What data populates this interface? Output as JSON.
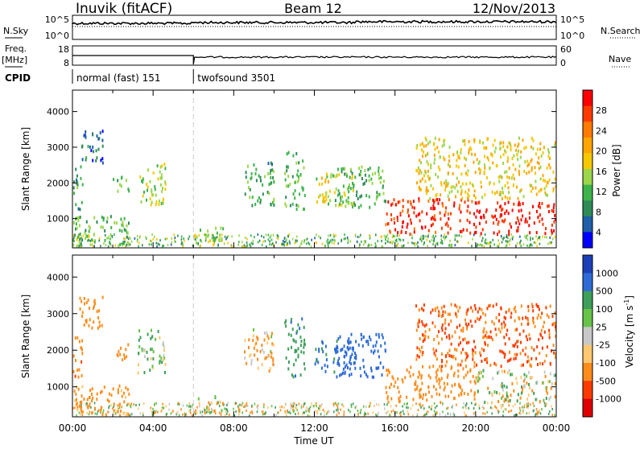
{
  "header": {
    "station": "Inuvik (fitACF)",
    "beam": "Beam 12",
    "date": "12/Nov/2013"
  },
  "side_labels": {
    "nsky": "N.Sky",
    "freq_top": "Freq.",
    "freq_unit": "[MHz]",
    "cpid": "CPID",
    "nsearch": "N.Search",
    "nave": "Nave"
  },
  "strip_ticks": {
    "noise_top": "10^5",
    "noise_bottom": "10^0",
    "freq_top": "18",
    "freq_bottom": "8",
    "nave_top": "60",
    "nave_bottom": "0"
  },
  "cpid_segments": [
    {
      "label": "normal (fast) 151",
      "start_hour": 0,
      "end_hour": 6.0
    },
    {
      "label": "twofsound 3501",
      "start_hour": 6.0,
      "end_hour": 24
    }
  ],
  "chart_data": [
    {
      "type": "heatmap",
      "name": "power-panel",
      "x": {
        "label": "Time UT",
        "range_hours": [
          0,
          24
        ],
        "ticks": [
          "00:00",
          "04:00",
          "08:00",
          "12:00",
          "16:00",
          "20:00",
          "00:00"
        ]
      },
      "y": {
        "label": "Slant Range [km]",
        "range": [
          180,
          4600
        ],
        "ticks": [
          "1000",
          "2000",
          "3000",
          "4000"
        ]
      },
      "colorbar": {
        "label": "Power [dB]",
        "ticks": [
          "28",
          "24",
          "20",
          "16",
          "12",
          "8",
          "4"
        ],
        "colors": [
          "#ff0000",
          "#ff3a00",
          "#ff7a00",
          "#ffa500",
          "#f5c800",
          "#9bd64b",
          "#3cb44b",
          "#2e8b57",
          "#1e5fa8",
          "#0000ff"
        ]
      },
      "regions": [
        {
          "t0": 0.0,
          "t1": 0.5,
          "r0": 1300,
          "r1": 2500,
          "level": 8
        },
        {
          "t0": 0.0,
          "t1": 2.8,
          "r0": 250,
          "r1": 1100,
          "level": 10
        },
        {
          "t0": 0.3,
          "t1": 1.5,
          "r0": 2600,
          "r1": 3500,
          "level": 4
        },
        {
          "t0": 2.0,
          "t1": 2.8,
          "r0": 1700,
          "r1": 2200,
          "level": 10
        },
        {
          "t0": 3.2,
          "t1": 4.6,
          "r0": 1400,
          "r1": 2600,
          "level": 12
        },
        {
          "t0": 6.0,
          "t1": 7.5,
          "r0": 300,
          "r1": 800,
          "level": 12
        },
        {
          "t0": 8.5,
          "t1": 10.0,
          "r0": 1400,
          "r1": 2600,
          "level": 8
        },
        {
          "t0": 10.5,
          "t1": 11.5,
          "r0": 1300,
          "r1": 2900,
          "level": 10
        },
        {
          "t0": 12.0,
          "t1": 14.0,
          "r0": 1400,
          "r1": 2300,
          "level": 14
        },
        {
          "t0": 13.0,
          "t1": 15.5,
          "r0": 1300,
          "r1": 2500,
          "level": 10
        },
        {
          "t0": 15.5,
          "t1": 20.0,
          "r0": 600,
          "r1": 1600,
          "level": 26
        },
        {
          "t0": 17.0,
          "t1": 24.0,
          "r0": 1600,
          "r1": 3300,
          "level": 16
        },
        {
          "t0": 20.0,
          "t1": 24.0,
          "r0": 600,
          "r1": 1500,
          "level": 28
        }
      ]
    },
    {
      "type": "heatmap",
      "name": "velocity-panel",
      "x": {
        "label": "Time UT",
        "range_hours": [
          0,
          24
        ],
        "ticks": [
          "00:00",
          "04:00",
          "08:00",
          "12:00",
          "16:00",
          "20:00",
          "00:00"
        ]
      },
      "y": {
        "label": "Slant Range [km]",
        "range": [
          180,
          4600
        ],
        "ticks": [
          "1000",
          "2000",
          "3000",
          "4000"
        ]
      },
      "colorbar": {
        "label": "Velocity [m s^-1]",
        "ticks": [
          "1000",
          "500",
          "100",
          "25",
          "-25",
          "-100",
          "-500",
          "-1000"
        ],
        "colors": [
          "#1c3fb8",
          "#2e6bd6",
          "#3d9f5a",
          "#67c24a",
          "#c8c8c8",
          "#ffc870",
          "#ff8c1a",
          "#ff3a00",
          "#e00000"
        ]
      },
      "regions": [
        {
          "t0": 0.0,
          "t1": 0.5,
          "r0": 1300,
          "r1": 2500,
          "level": -400
        },
        {
          "t0": 0.0,
          "t1": 2.8,
          "r0": 250,
          "r1": 1100,
          "level": -200
        },
        {
          "t0": 0.3,
          "t1": 1.5,
          "r0": 2600,
          "r1": 3500,
          "level": -300
        },
        {
          "t0": 2.0,
          "t1": 2.8,
          "r0": 1700,
          "r1": 2200,
          "level": -300
        },
        {
          "t0": 3.2,
          "t1": 4.6,
          "r0": 1400,
          "r1": 2600,
          "level": 100
        },
        {
          "t0": 6.0,
          "t1": 7.5,
          "r0": 300,
          "r1": 800,
          "level": 0
        },
        {
          "t0": 8.5,
          "t1": 10.0,
          "r0": 1400,
          "r1": 2600,
          "level": -100
        },
        {
          "t0": 10.5,
          "t1": 11.5,
          "r0": 1300,
          "r1": 2900,
          "level": 400
        },
        {
          "t0": 12.0,
          "t1": 14.0,
          "r0": 1400,
          "r1": 2300,
          "level": 600
        },
        {
          "t0": 13.0,
          "t1": 15.5,
          "r0": 1300,
          "r1": 2500,
          "level": 700
        },
        {
          "t0": 15.5,
          "t1": 20.0,
          "r0": 600,
          "r1": 1600,
          "level": -300
        },
        {
          "t0": 17.0,
          "t1": 24.0,
          "r0": 1600,
          "r1": 3300,
          "level": -500
        },
        {
          "t0": 20.0,
          "t1": 24.0,
          "r0": 600,
          "r1": 1500,
          "level": 0
        }
      ]
    }
  ]
}
